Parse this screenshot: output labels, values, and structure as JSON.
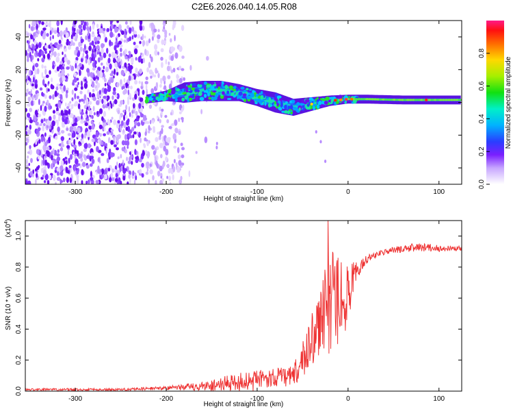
{
  "title": "C2E6.2026.040.14.05.R08",
  "chart_data": [
    {
      "type": "heatmap",
      "name": "spectrogram",
      "xlabel": "Height of straight line (km)",
      "ylabel": "Frequency (Hz)",
      "xlim": [
        -355,
        125
      ],
      "ylim": [
        -50,
        50
      ],
      "x_ticks": [
        -300,
        -200,
        -100,
        0,
        100
      ],
      "x_tick_labels": [
        "-300",
        "-200",
        "-100",
        "0",
        "100"
      ],
      "y_ticks": [
        -40,
        -20,
        0,
        20,
        40
      ],
      "y_tick_labels": [
        "-40",
        "-20",
        "0",
        "20",
        "40"
      ],
      "colorbar": {
        "label": "Normalized spectral amplitude",
        "range": [
          0,
          1
        ],
        "ticks": [
          0.0,
          0.2,
          0.4,
          0.6,
          0.8
        ],
        "tick_labels": [
          "0.0",
          "0.2",
          "0.4",
          "0.6",
          "0.8"
        ]
      },
      "noise_region": {
        "x_range": [
          -355,
          -180
        ],
        "freq_range": [
          -50,
          50
        ]
      },
      "band": {
        "description": "signal band center frequency vs height",
        "x": [
          -222,
          -200,
          -180,
          -160,
          -140,
          -120,
          -100,
          -80,
          -60,
          -40,
          -20,
          0,
          20,
          60,
          100,
          125
        ],
        "center_hz": [
          2,
          4,
          6,
          7,
          7,
          6,
          3,
          0,
          -3,
          -1,
          1,
          2,
          2,
          1.5,
          1.5,
          1.5
        ],
        "half_width_hz": [
          1.5,
          2,
          5,
          5,
          5,
          4,
          4,
          5,
          4,
          3,
          2,
          1.5,
          1.5,
          1.5,
          1.5,
          1.5
        ]
      },
      "tail": {
        "x": [
          -35,
          -30,
          -25
        ],
        "freq_hz": [
          -18,
          -24,
          -36
        ]
      }
    },
    {
      "type": "line",
      "name": "snr",
      "xlabel": "Height of straight line (km)",
      "ylabel": "SNR (10 * v/v)",
      "multiplier_label": "(x10",
      "multiplier_exp": "4",
      "xlim": [
        -355,
        125
      ],
      "ylim": [
        0,
        1.1
      ],
      "x_ticks": [
        -300,
        -200,
        -100,
        0,
        100
      ],
      "x_tick_labels": [
        "-300",
        "-200",
        "-100",
        "0",
        "100"
      ],
      "y_ticks": [
        0.0,
        0.2,
        0.4,
        0.6,
        0.8,
        1.0
      ],
      "y_tick_labels": [
        "0.0",
        "0.2",
        "0.4",
        "0.6",
        "0.8",
        "1.0"
      ],
      "series": [
        {
          "name": "SNR",
          "color": "#ee3333",
          "envelope_x": [
            -355,
            -250,
            -200,
            -160,
            -120,
            -80,
            -60,
            -50,
            -40,
            -30,
            -20,
            -10,
            0,
            10,
            20,
            30,
            50,
            80,
            100,
            125
          ],
          "envelope_y": [
            0.01,
            0.01,
            0.02,
            0.03,
            0.06,
            0.09,
            0.1,
            0.2,
            0.35,
            0.45,
            0.55,
            0.6,
            0.62,
            0.78,
            0.85,
            0.88,
            0.91,
            0.93,
            0.92,
            0.92
          ],
          "noise_amp": [
            0.008,
            0.008,
            0.012,
            0.03,
            0.06,
            0.06,
            0.07,
            0.12,
            0.2,
            0.25,
            0.35,
            0.3,
            0.2,
            0.06,
            0.03,
            0.02,
            0.02,
            0.03,
            0.02,
            0.015
          ]
        }
      ]
    }
  ]
}
